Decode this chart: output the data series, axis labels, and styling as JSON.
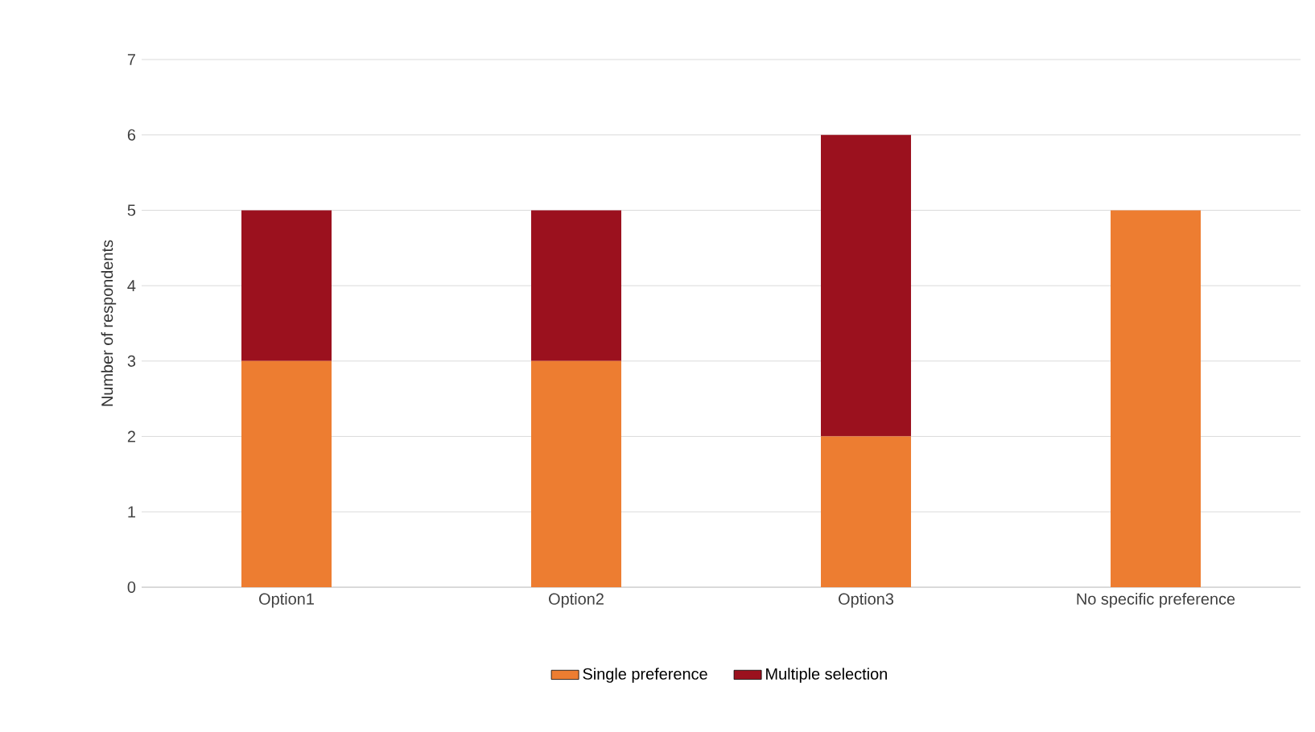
{
  "chart_data": {
    "type": "bar",
    "stacked": true,
    "ylabel": "Number of respondents",
    "categories": [
      "Option1",
      "Option2",
      "Option3",
      "No specific preference"
    ],
    "series": [
      {
        "name": "Single preference",
        "color": "#ed7d31",
        "values": [
          3,
          3,
          2,
          5
        ]
      },
      {
        "name": "Multiple selection",
        "color": "#9b111e",
        "values": [
          2,
          2,
          4,
          0
        ]
      }
    ],
    "ylim": [
      0,
      7
    ],
    "yticks": [
      0,
      1,
      2,
      3,
      4,
      5,
      6,
      7
    ],
    "grid": "y",
    "legend": "bottom"
  }
}
